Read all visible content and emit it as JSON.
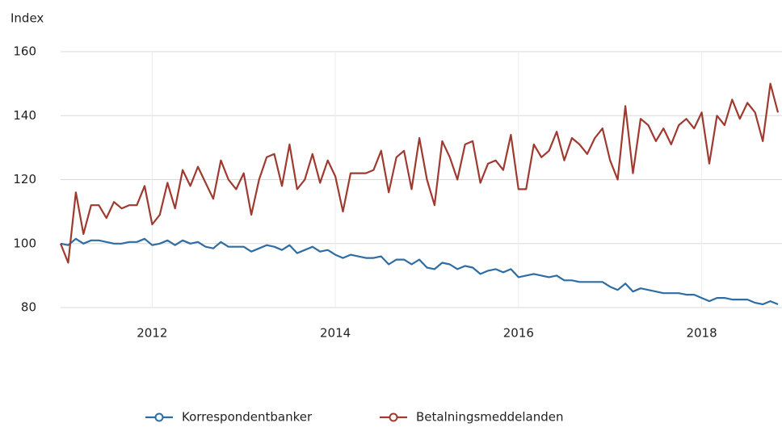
{
  "chart_data": {
    "type": "line",
    "y_label": "Index",
    "x": [
      2011.0,
      2011.083,
      2011.167,
      2011.25,
      2011.333,
      2011.417,
      2011.5,
      2011.583,
      2011.667,
      2011.75,
      2011.833,
      2011.917,
      2012.0,
      2012.083,
      2012.167,
      2012.25,
      2012.333,
      2012.417,
      2012.5,
      2012.583,
      2012.667,
      2012.75,
      2012.833,
      2012.917,
      2013.0,
      2013.083,
      2013.167,
      2013.25,
      2013.333,
      2013.417,
      2013.5,
      2013.583,
      2013.667,
      2013.75,
      2013.833,
      2013.917,
      2014.0,
      2014.083,
      2014.167,
      2014.25,
      2014.333,
      2014.417,
      2014.5,
      2014.583,
      2014.667,
      2014.75,
      2014.833,
      2014.917,
      2015.0,
      2015.083,
      2015.167,
      2015.25,
      2015.333,
      2015.417,
      2015.5,
      2015.583,
      2015.667,
      2015.75,
      2015.833,
      2015.917,
      2016.0,
      2016.083,
      2016.167,
      2016.25,
      2016.333,
      2016.417,
      2016.5,
      2016.583,
      2016.667,
      2016.75,
      2016.833,
      2016.917,
      2017.0,
      2017.083,
      2017.167,
      2017.25,
      2017.333,
      2017.417,
      2017.5,
      2017.583,
      2017.667,
      2017.75,
      2017.833,
      2017.917,
      2018.0,
      2018.083,
      2018.167,
      2018.25,
      2018.333,
      2018.417,
      2018.5,
      2018.583,
      2018.667,
      2018.75,
      2018.833
    ],
    "series": [
      {
        "name": "Korrespondentbanker",
        "color": "#2e6da4",
        "values": [
          100,
          99.5,
          101.5,
          100,
          101,
          101,
          100.5,
          100,
          100,
          100.5,
          100.5,
          101.5,
          99.5,
          100,
          101,
          99.5,
          101,
          100,
          100.5,
          99,
          98.5,
          100.5,
          99,
          99,
          99,
          97.5,
          98.5,
          99.5,
          99,
          98,
          99.5,
          97,
          98,
          99,
          97.5,
          98,
          96.5,
          95.5,
          96.5,
          96,
          95.5,
          95.5,
          96,
          93.5,
          95,
          95,
          93.5,
          95,
          92.5,
          92,
          94,
          93.5,
          92,
          93,
          92.5,
          90.5,
          91.5,
          92,
          91,
          92,
          89.5,
          90,
          90.5,
          90,
          89.5,
          90,
          88.5,
          88.5,
          88,
          88,
          88,
          88,
          86.5,
          85.5,
          87.5,
          85,
          86,
          85.5,
          85,
          84.5,
          84.5,
          84.5,
          84,
          84,
          83,
          82,
          83,
          83,
          82.5,
          82.5,
          82.5,
          81.5,
          81,
          82,
          81
        ]
      },
      {
        "name": "Betalningsmeddelanden",
        "color": "#9e3a30",
        "values": [
          100,
          94,
          116,
          103,
          112,
          112,
          108,
          113,
          111,
          112,
          112,
          118,
          106,
          109,
          119,
          111,
          123,
          118,
          124,
          119,
          114,
          126,
          120,
          117,
          122,
          109,
          120,
          127,
          128,
          118,
          131,
          117,
          120,
          128,
          119,
          126,
          121,
          110,
          122,
          122,
          122,
          123,
          129,
          116,
          127,
          129,
          117,
          133,
          120,
          112,
          132,
          127,
          120,
          131,
          132,
          119,
          125,
          126,
          123,
          134,
          117,
          117,
          131,
          127,
          129,
          135,
          126,
          133,
          131,
          128,
          133,
          136,
          126,
          120,
          143,
          122,
          139,
          137,
          132,
          136,
          131,
          137,
          139,
          136,
          141,
          125,
          140,
          137,
          145,
          139,
          144,
          141,
          132,
          150,
          141
        ]
      }
    ],
    "xlim": [
      2011,
      2018.833
    ],
    "xticks": [
      2012,
      2014,
      2016,
      2018
    ],
    "ylim": [
      80,
      160
    ],
    "yticks": [
      80,
      100,
      120,
      140,
      160
    ],
    "grid": true,
    "legend": "bottom"
  }
}
